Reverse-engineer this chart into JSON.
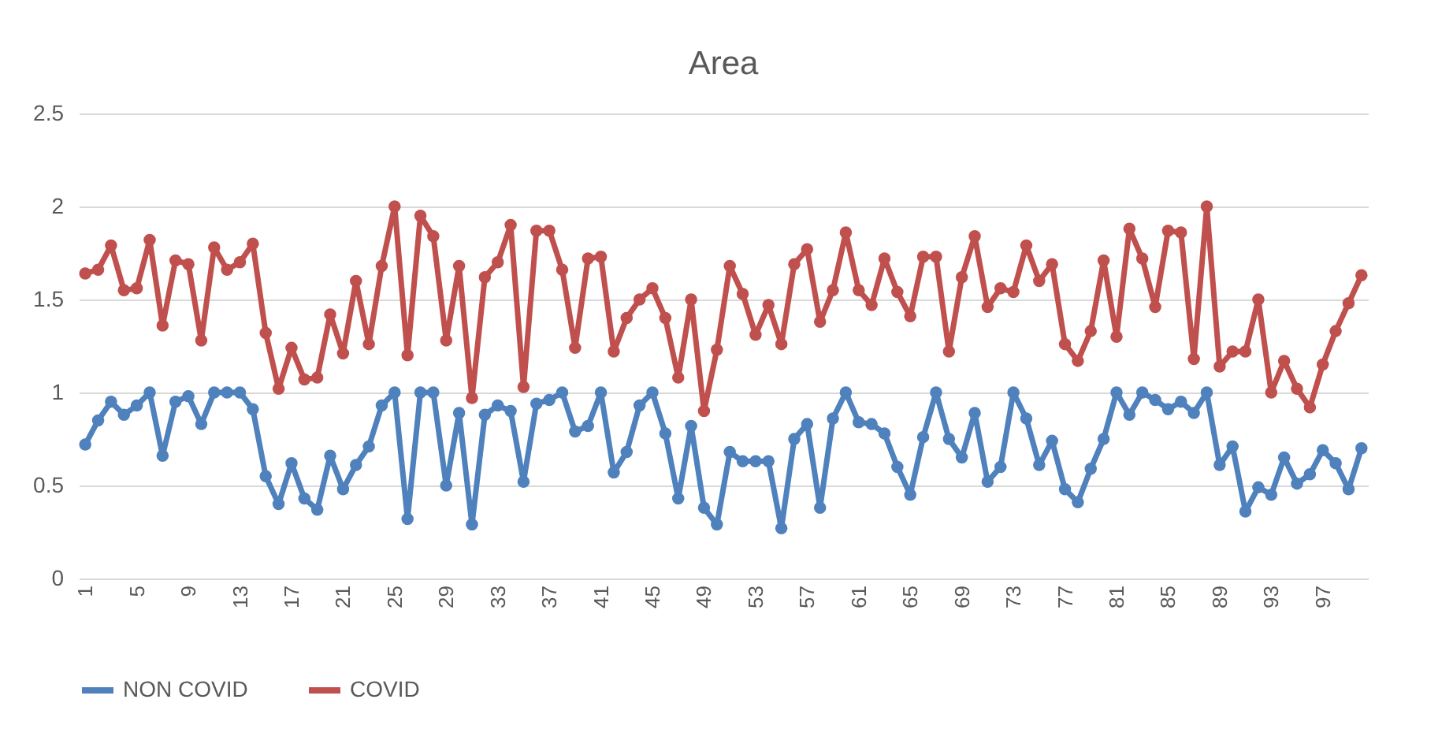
{
  "chart_data": {
    "type": "line",
    "title": "Area",
    "categories": [
      "1",
      null,
      null,
      null,
      "5",
      null,
      null,
      null,
      "9",
      null,
      null,
      null,
      "13",
      null,
      null,
      null,
      "17",
      null,
      null,
      null,
      "21",
      null,
      null,
      null,
      "25",
      null,
      null,
      null,
      "29",
      null,
      null,
      null,
      "33",
      null,
      null,
      null,
      "37",
      null,
      null,
      null,
      "41",
      null,
      null,
      null,
      "45",
      null,
      null,
      null,
      "49",
      null,
      null,
      null,
      "53",
      null,
      null,
      null,
      "57",
      null,
      null,
      null,
      "61",
      null,
      null,
      null,
      "65",
      null,
      null,
      null,
      "69",
      null,
      null,
      null,
      "73",
      null,
      null,
      null,
      "77",
      null,
      null,
      null,
      "81",
      null,
      null,
      null,
      "85",
      null,
      null,
      null,
      "89",
      null,
      null,
      null,
      "93",
      null,
      null,
      null,
      "97",
      null,
      null,
      null
    ],
    "series": [
      {
        "name": "NON COVID",
        "color": "#4f81bd",
        "values": [
          0.72,
          0.85,
          0.95,
          0.88,
          0.93,
          1.0,
          0.66,
          0.95,
          0.98,
          0.83,
          1.0,
          1.0,
          1.0,
          0.91,
          0.55,
          0.4,
          0.62,
          0.43,
          0.37,
          0.66,
          0.48,
          0.61,
          0.71,
          0.93,
          1.0,
          0.32,
          1.0,
          1.0,
          0.5,
          0.89,
          0.29,
          0.88,
          0.93,
          0.9,
          0.52,
          0.94,
          0.96,
          1.0,
          0.79,
          0.82,
          1.0,
          0.57,
          0.68,
          0.93,
          1.0,
          0.78,
          0.43,
          0.82,
          0.38,
          0.29,
          0.68,
          0.63,
          0.63,
          0.63,
          0.27,
          0.75,
          0.83,
          0.38,
          0.86,
          1.0,
          0.84,
          0.83,
          0.78,
          0.6,
          0.45,
          0.76,
          1.0,
          0.75,
          0.65,
          0.89,
          0.52,
          0.6,
          1.0,
          0.86,
          0.61,
          0.74,
          0.48,
          0.41,
          0.59,
          0.75,
          1.0,
          0.88,
          1.0,
          0.96,
          0.91,
          0.95,
          0.89,
          1.0,
          0.61,
          0.71,
          0.36,
          0.49,
          0.45,
          0.65,
          0.51,
          0.56,
          0.69,
          0.62,
          0.48,
          0.7
        ]
      },
      {
        "name": "COVID",
        "color": "#c0504d",
        "values": [
          1.64,
          1.66,
          1.79,
          1.55,
          1.56,
          1.82,
          1.36,
          1.71,
          1.69,
          1.28,
          1.78,
          1.66,
          1.7,
          1.8,
          1.32,
          1.02,
          1.24,
          1.07,
          1.08,
          1.42,
          1.21,
          1.6,
          1.26,
          1.68,
          2.0,
          1.2,
          1.95,
          1.84,
          1.28,
          1.68,
          0.97,
          1.62,
          1.7,
          1.9,
          1.03,
          1.87,
          1.87,
          1.66,
          1.24,
          1.72,
          1.73,
          1.22,
          1.4,
          1.5,
          1.56,
          1.4,
          1.08,
          1.5,
          0.9,
          1.23,
          1.68,
          1.53,
          1.31,
          1.47,
          1.26,
          1.69,
          1.77,
          1.38,
          1.55,
          1.86,
          1.55,
          1.47,
          1.72,
          1.54,
          1.41,
          1.73,
          1.73,
          1.22,
          1.62,
          1.84,
          1.46,
          1.56,
          1.54,
          1.79,
          1.6,
          1.69,
          1.26,
          1.17,
          1.33,
          1.71,
          1.3,
          1.88,
          1.72,
          1.46,
          1.87,
          1.86,
          1.18,
          2.0,
          1.14,
          1.22,
          1.22,
          1.5,
          1.0,
          1.17,
          1.02,
          0.92,
          1.15,
          1.33,
          1.48,
          1.63
        ]
      }
    ],
    "ylim": [
      0,
      2.5
    ],
    "yticks": [
      0,
      0.5,
      1,
      1.5,
      2,
      2.5
    ],
    "grid": "y",
    "legend": "bottom",
    "marker": "circle",
    "line_style": "solid"
  }
}
